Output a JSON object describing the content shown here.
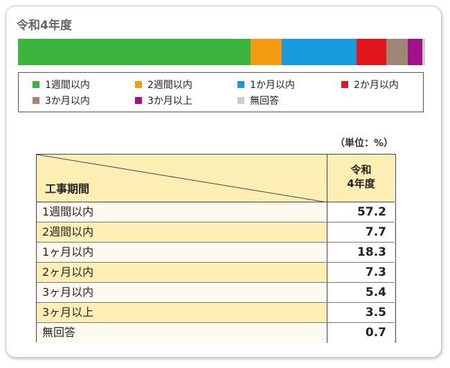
{
  "chart_data": {
    "type": "bar",
    "title": "令和4年度",
    "orientation": "stacked-100-horizontal",
    "series": [
      {
        "name": "1週間以内",
        "value": 57.2,
        "color": "#3db53d"
      },
      {
        "name": "2週間以内",
        "value": 7.7,
        "color": "#f39c12"
      },
      {
        "name": "1か月以内",
        "value": 18.3,
        "color": "#1a9be0"
      },
      {
        "name": "2か月以内",
        "value": 7.3,
        "color": "#e3141c"
      },
      {
        "name": "3か月以内",
        "value": 5.4,
        "color": "#a08775"
      },
      {
        "name": "3か月以上",
        "value": 3.5,
        "color": "#a0128c"
      },
      {
        "name": "無回答",
        "value": 0.7,
        "color": "#cccccc"
      }
    ],
    "legend": [
      {
        "label": "1週間以内",
        "color": "#3db53d"
      },
      {
        "label": "2週間以内",
        "color": "#f39c12"
      },
      {
        "label": "1か月以内",
        "color": "#1a9be0"
      },
      {
        "label": "2か月以内",
        "color": "#e3141c"
      },
      {
        "label": "3か月以内",
        "color": "#a08775"
      },
      {
        "label": "3か月以上",
        "color": "#a0128c"
      },
      {
        "label": "無回答",
        "color": "#cccccc"
      }
    ]
  },
  "table": {
    "unit": "（単位：%）",
    "row_header": "工事期間",
    "col_header_line1": "令和",
    "col_header_line2": "4年度",
    "rows": [
      {
        "category": "1週間以内",
        "value": "57.2"
      },
      {
        "category": "2週間以内",
        "value": "7.7"
      },
      {
        "category": "1ヶ月以内",
        "value": "18.3"
      },
      {
        "category": "2ヶ月以内",
        "value": "7.3"
      },
      {
        "category": "3ヶ月以内",
        "value": "5.4"
      },
      {
        "category": "3ヶ月以上",
        "value": "3.5"
      },
      {
        "category": "無回答",
        "value": "0.7"
      }
    ]
  }
}
